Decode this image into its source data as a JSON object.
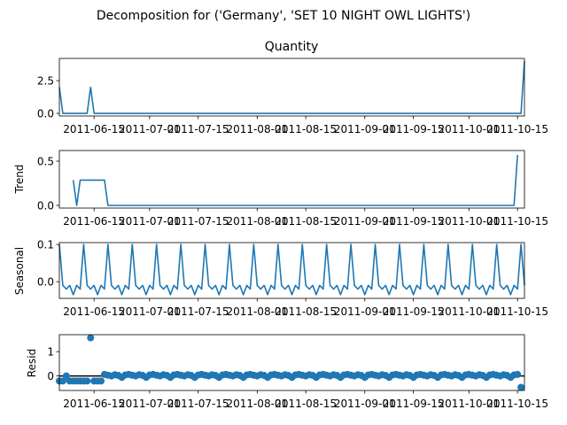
{
  "suptitle": "Decomposition for ('Germany', 'SET 10 NIGHT OWL LIGHTS')",
  "colors": {
    "line": "#1f77b4",
    "point": "#1f77b4",
    "axis": "#000000",
    "zero_line": "#000000"
  },
  "x_tick_labels": [
    "2011-06-15",
    "2011-07-01",
    "2011-07-15",
    "2011-08-01",
    "2011-08-15",
    "2011-09-01",
    "2011-09-15",
    "2011-10-01",
    "2011-10-15"
  ],
  "chart_data": [
    {
      "type": "line",
      "title": "Quantity",
      "ylabel": "",
      "x_range": [
        "2011-06-05",
        "2011-10-17"
      ],
      "ylim": [
        -0.2,
        4.2
      ],
      "yticks": [
        0.0,
        2.5
      ],
      "ytick_labels": [
        "0.0",
        "2.5"
      ],
      "series": [
        {
          "points": [
            [
              "2011-06-05",
              2.0
            ],
            [
              "2011-06-06",
              0.0
            ],
            [
              "2011-06-13",
              0.0
            ],
            [
              "2011-06-14",
              2.0
            ],
            [
              "2011-06-15",
              0.0
            ],
            [
              "2011-10-16",
              0.0
            ],
            [
              "2011-10-17",
              4.0
            ]
          ]
        }
      ]
    },
    {
      "type": "line",
      "title": "",
      "ylabel": "Trend",
      "x_range": [
        "2011-06-05",
        "2011-10-17"
      ],
      "ylim": [
        -0.03,
        0.62
      ],
      "yticks": [
        0.0,
        0.5
      ],
      "ytick_labels": [
        "0.0",
        "0.5"
      ],
      "series": [
        {
          "points": [
            [
              "2011-06-09",
              0.286
            ],
            [
              "2011-06-10",
              0.0
            ],
            [
              "2011-06-11",
              0.286
            ],
            [
              "2011-06-18",
              0.286
            ],
            [
              "2011-06-19",
              0.0
            ],
            [
              "2011-10-14",
              0.0
            ],
            [
              "2011-10-15",
              0.571
            ]
          ]
        }
      ]
    },
    {
      "type": "line",
      "title": "",
      "ylabel": "Seasonal",
      "x_range": [
        "2011-06-05",
        "2011-10-17"
      ],
      "ylim": [
        -0.045,
        0.105
      ],
      "yticks": [
        0.0,
        0.1
      ],
      "ytick_labels": [
        "0.0",
        "0.1"
      ],
      "series": [
        {
          "weekly_pattern": [
            0.1,
            -0.01,
            -0.02,
            -0.01,
            -0.035,
            -0.01,
            -0.02
          ],
          "start": "2011-06-05",
          "end": "2011-10-17"
        }
      ]
    },
    {
      "type": "scatter",
      "title": "",
      "ylabel": "Resid",
      "x_range": [
        "2011-06-05",
        "2011-10-17"
      ],
      "ylim": [
        -0.6,
        1.7
      ],
      "yticks": [
        0,
        1
      ],
      "ytick_labels": [
        "0",
        "1"
      ],
      "zero_line": true,
      "series": [
        {
          "outliers": [
            [
              "2011-06-05",
              -0.21
            ],
            [
              "2011-06-06",
              -0.21
            ],
            [
              "2011-06-07",
              0.0
            ],
            [
              "2011-06-08",
              -0.21
            ],
            [
              "2011-06-09",
              -0.21
            ],
            [
              "2011-06-10",
              -0.21
            ],
            [
              "2011-06-11",
              -0.21
            ],
            [
              "2011-06-12",
              -0.21
            ],
            [
              "2011-06-13",
              -0.21
            ],
            [
              "2011-06-14",
              1.57
            ],
            [
              "2011-06-15",
              -0.21
            ],
            [
              "2011-06-16",
              -0.21
            ],
            [
              "2011-06-17",
              -0.21
            ],
            [
              "2011-10-16",
              -0.47
            ]
          ],
          "regular_range": [
            "2011-06-18",
            "2011-10-15"
          ],
          "regular_values": [
            0.06,
            0.03,
            0.0,
            0.05,
            0.02,
            -0.06,
            0.04
          ]
        }
      ]
    }
  ]
}
